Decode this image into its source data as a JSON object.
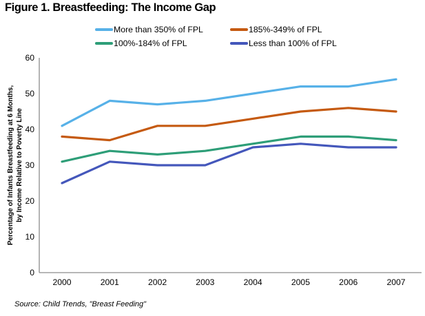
{
  "title": "Figure 1. Breastfeeding: The Income Gap",
  "source": "Source: Child Trends, \"Breast Feeding\"",
  "y_axis_title_line1": "Percentage of Infants Breastfeeding at 6 Months,",
  "y_axis_title_line2": "by Income Relative to Poverty Line",
  "colors": {
    "axis": "#8C8C8C",
    "tick_text": "#000000"
  },
  "chart_data": {
    "type": "line",
    "title": "Figure 1. Breastfeeding: The Income Gap",
    "categories": [
      "2000",
      "2001",
      "2002",
      "2003",
      "2004",
      "2005",
      "2006",
      "2007"
    ],
    "series": [
      {
        "name": "More than 350% of FPL",
        "color": "#57B1E8",
        "values": [
          41,
          48,
          47,
          48,
          50,
          52,
          52,
          54
        ]
      },
      {
        "name": "185%-349% of FPL",
        "color": "#C55A11",
        "values": [
          38,
          37,
          41,
          41,
          43,
          45,
          46,
          45
        ]
      },
      {
        "name": "100%-184% of FPL",
        "color": "#2E9E78",
        "values": [
          31,
          34,
          33,
          34,
          36,
          38,
          38,
          37
        ]
      },
      {
        "name": "Less than 100% of FPL",
        "color": "#4457BB",
        "values": [
          25,
          31,
          30,
          30,
          35,
          36,
          35,
          35
        ]
      }
    ],
    "xlabel": "",
    "ylabel": "Percentage of Infants Breastfeeding at 6 Months, by Income Relative to Poverty Line",
    "ylim": [
      0,
      60
    ],
    "ytick_step": 10,
    "grid": false,
    "legend_position": "top",
    "source": "Source: Child Trends, \"Breast Feeding\""
  }
}
